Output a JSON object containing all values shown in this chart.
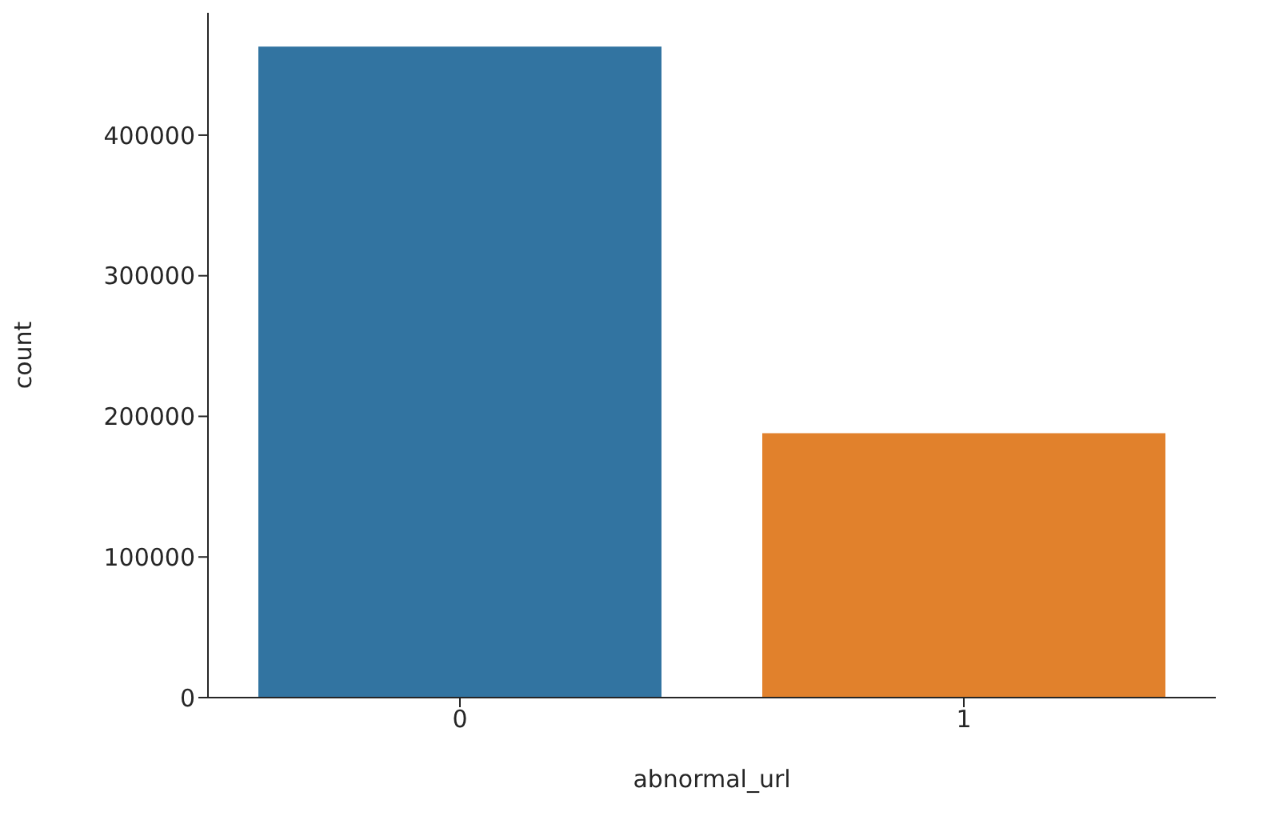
{
  "chart_data": {
    "type": "bar",
    "xlabel": "abnormal_url",
    "ylabel": "count",
    "categories": [
      "0",
      "1"
    ],
    "values": [
      463000,
      188000
    ],
    "colors": [
      "#3274a1",
      "#e1812c"
    ],
    "ylim": [
      0,
      487000
    ],
    "yticks": [
      0,
      100000,
      200000,
      300000,
      400000
    ]
  }
}
